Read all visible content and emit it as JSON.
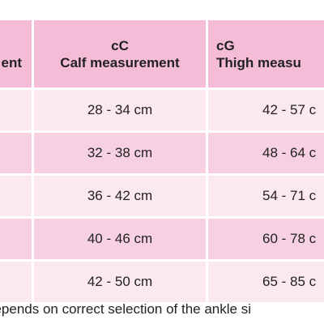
{
  "table": {
    "headers": [
      {
        "code": "",
        "label": "ent"
      },
      {
        "code": "cC",
        "label": "Calf measurement"
      },
      {
        "code": "cG",
        "label": "Thigh measu"
      }
    ],
    "rows": [
      {
        "ankle": "",
        "calf": "28 - 34 cm",
        "thigh": "42 - 57 c"
      },
      {
        "ankle": "",
        "calf": "32 - 38 cm",
        "thigh": "48 - 64 c"
      },
      {
        "ankle": "",
        "calf": "36 - 42 cm",
        "thigh": "54 - 71 c"
      },
      {
        "ankle": "",
        "calf": "40 - 46 cm",
        "thigh": "60 - 78 c"
      },
      {
        "ankle": "",
        "calf": "42 - 50 cm",
        "thigh": "65 - 85 c"
      }
    ]
  },
  "footnote": "depends on correct selection of the ankle si",
  "colors": {
    "header_bg": "#f4bcd6",
    "row_light": "#fce8f1",
    "row_dark": "#f7d0e2",
    "text": "#222222"
  }
}
